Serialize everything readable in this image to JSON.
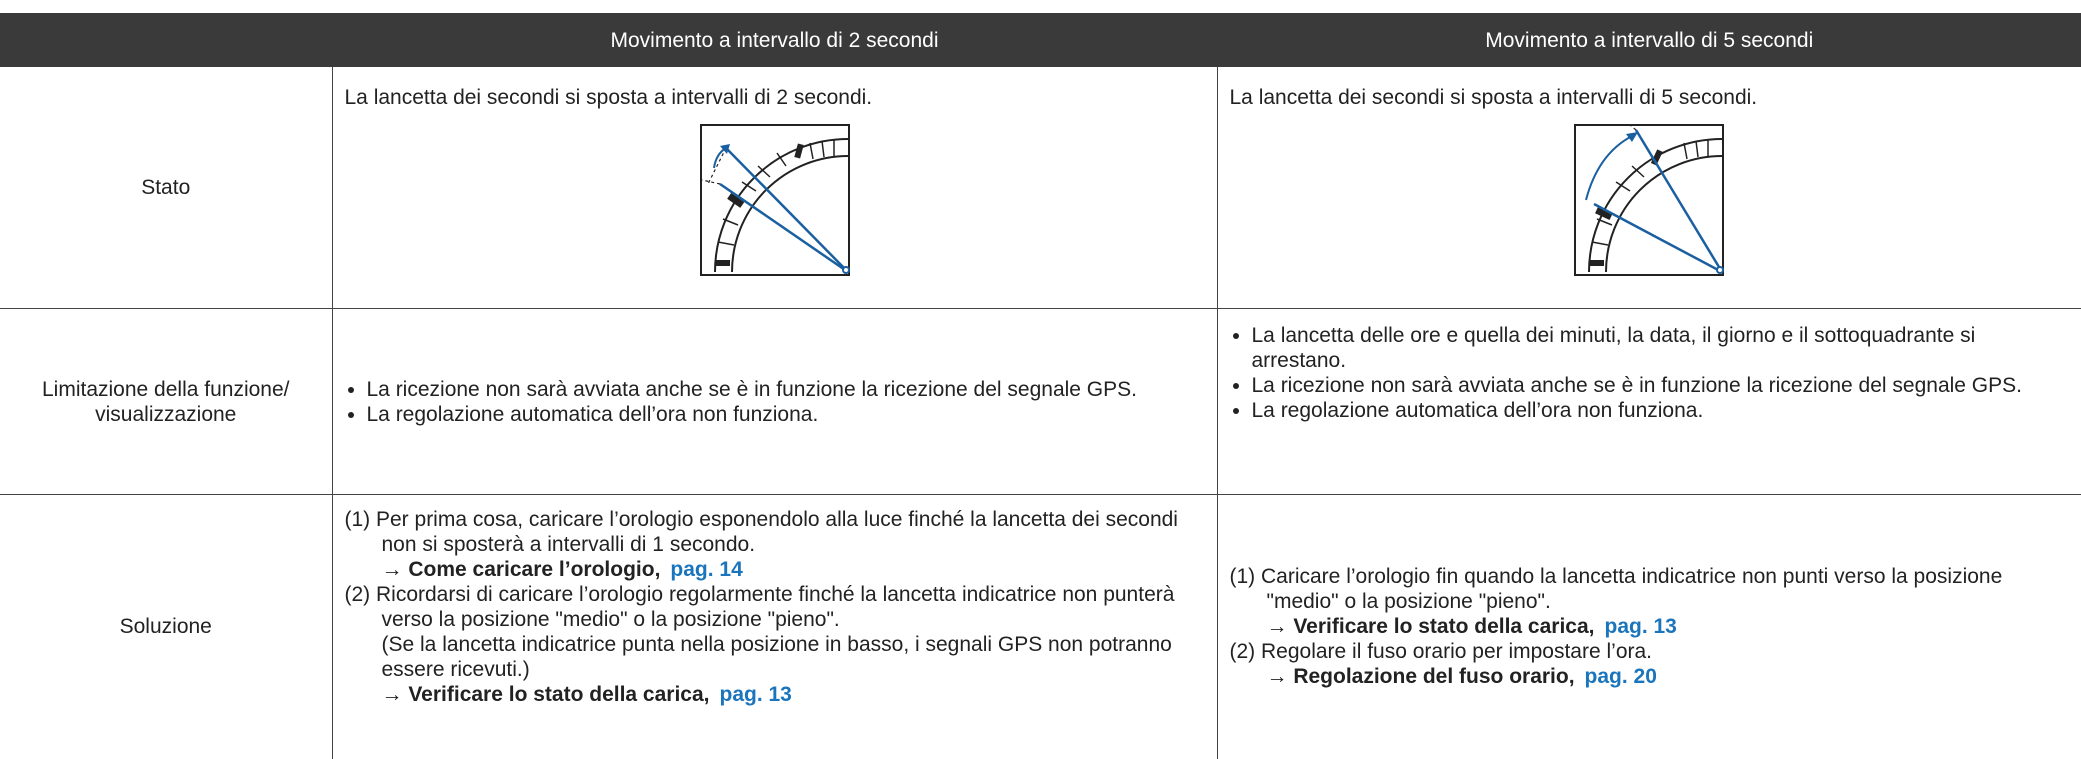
{
  "table": {
    "header": {
      "col1": "Movimento a intervallo di 2 secondi",
      "col2": "Movimento a intervallo di 5 secondi"
    },
    "rows": [
      {
        "label": "Stato",
        "col1": {
          "text": "La lancetta dei secondi si sposta a intervalli di 2 secondi."
        },
        "col2": {
          "text": "La lancetta dei secondi si sposta a intervalli di 5 secondi."
        }
      },
      {
        "label": "Limitazione della funzione/ visualizzazione",
        "col1": {
          "bullets": [
            "La ricezione non sarà avviata anche se è in funzione la ricezione del segnale GPS.",
            "La regolazione automatica dell’ora non funziona."
          ]
        },
        "col2": {
          "bullets": [
            "La lancetta delle ore e quella dei minuti, la data, il giorno e il sottoquadrante si arrestano.",
            "La ricezione non sarà avviata anche se è in funzione la ricezione del segnale GPS.",
            "La regolazione automatica dell’ora non funziona."
          ]
        }
      },
      {
        "label": "Soluzione",
        "col1": {
          "steps": [
            {
              "text": "(1) Per prima cosa, caricare l’orologio esponendolo alla luce finché la lancetta dei secondi non si sposterà a intervalli di 1 secondo.",
              "ref": "→ Come caricare l’orologio,",
              "page": "pag. 14"
            },
            {
              "text": "(2) Ricordarsi di caricare l’orologio regolarmente finché la lancetta indicatrice non punterà verso la posizione \"medio\" o la posizione \"pieno\".",
              "note": "(Se la lancetta indicatrice punta nella posizione in basso, i segnali GPS non potranno essere ricevuti.)",
              "ref": "→ Verificare lo stato della carica,",
              "page": "pag. 13"
            }
          ]
        },
        "col2": {
          "steps": [
            {
              "text": "(1) Caricare l’orologio fin quando la lancetta indicatrice non punti verso la posizione \"medio\" o la posizione \"pieno\".",
              "ref": "→ Verificare lo stato della carica,",
              "page": "pag. 13"
            },
            {
              "text": "(2) Regolare il fuso orario per impostare l’ora.",
              "ref": "→ Regolazione del fuso orario,",
              "page": "pag. 20"
            }
          ]
        }
      }
    ]
  }
}
